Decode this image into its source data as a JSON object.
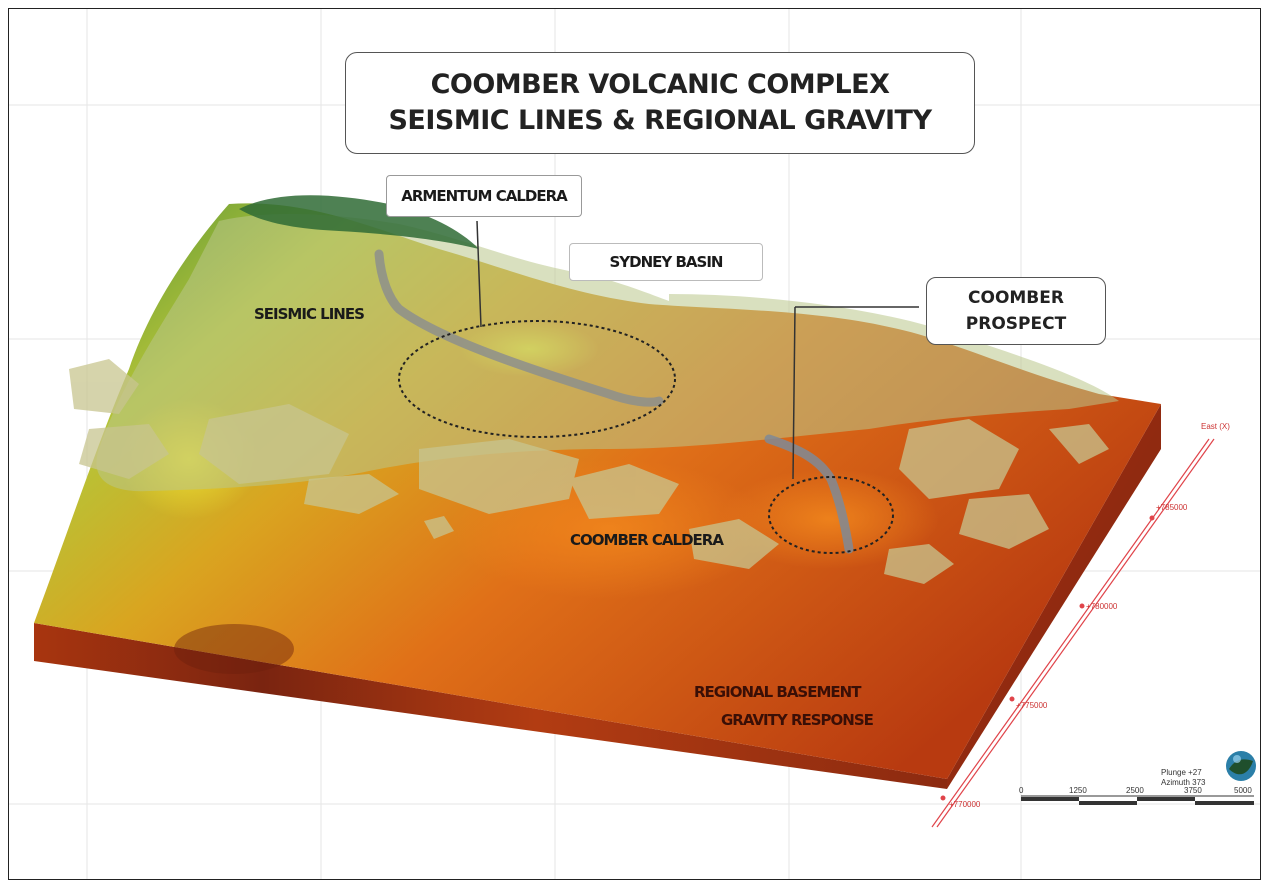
{
  "title": {
    "line1": "COOMBER VOLCANIC COMPLEX",
    "line2": "SEISMIC LINES & REGIONAL GRAVITY"
  },
  "labels": {
    "armentum_caldera": "ARMENTUM CALDERA",
    "sydney_basin": "SYDNEY BASIN",
    "seismic_lines": "SEISMIC LINES",
    "coomber_prospect_line1": "COOMBER",
    "coomber_prospect_line2": "PROSPECT",
    "coomber_caldera": "COOMBER CALDERA",
    "regional_basement_line1": "REGIONAL BASEMENT",
    "regional_basement_line2": "GRAVITY RESPONSE"
  },
  "axis": {
    "title": "East (X)",
    "ticks": [
      "+785000",
      "+780000",
      "+775000",
      "+770000"
    ]
  },
  "scale_bar": {
    "ticks": [
      "0",
      "1250",
      "2500",
      "3750",
      "5000"
    ]
  },
  "orientation": {
    "plunge": "Plunge +27",
    "azimuth": "Azimuth 373"
  },
  "colors": {
    "axis_red": "#e0444a",
    "ellipse": "#222222",
    "block_front": "#9a2a12",
    "gravity_high": "#e8701a",
    "gravity_mid": "#d9c025",
    "gravity_low": "#3f8a3a"
  }
}
